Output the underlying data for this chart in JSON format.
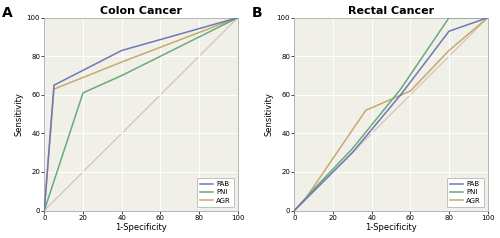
{
  "panel_A": {
    "title": "Colon Cancer",
    "label": "A",
    "PAB": {
      "x": [
        0,
        5,
        40,
        100
      ],
      "y": [
        0,
        65,
        83,
        100
      ]
    },
    "PNI": {
      "x": [
        0,
        20,
        40,
        100
      ],
      "y": [
        0,
        61,
        70,
        100
      ]
    },
    "AGR": {
      "x": [
        0,
        5,
        40,
        100
      ],
      "y": [
        0,
        63,
        77,
        100
      ]
    },
    "colors": {
      "PAB": "#6e78b5",
      "PNI": "#6aaa7a",
      "AGR": "#c8a870"
    },
    "diag_color": "#d4c4b8"
  },
  "panel_B": {
    "title": "Rectal Cancer",
    "label": "B",
    "PAB": {
      "x": [
        0,
        10,
        30,
        55,
        80,
        100
      ],
      "y": [
        0,
        10,
        30,
        60,
        93,
        100
      ]
    },
    "PNI": {
      "x": [
        0,
        10,
        30,
        55,
        80,
        100
      ],
      "y": [
        0,
        11,
        32,
        63,
        100,
        100
      ]
    },
    "AGR": {
      "x": [
        0,
        5,
        37,
        60,
        80,
        100
      ],
      "y": [
        0,
        5,
        52,
        62,
        83,
        100
      ]
    },
    "colors": {
      "PAB": "#6e78b5",
      "PNI": "#6aaa7a",
      "AGR": "#c8a870"
    },
    "diag_color": "#d4c4b8"
  },
  "xlabel": "1-Specificity",
  "ylabel": "Sensitivity",
  "xlim": [
    0,
    100
  ],
  "ylim": [
    0,
    100
  ],
  "xticks": [
    0,
    20,
    40,
    60,
    80,
    100
  ],
  "yticks": [
    0,
    20,
    40,
    60,
    80,
    100
  ],
  "bg_color": "#ffffff",
  "plot_bg_color": "#f0f0e8",
  "grid_color": "#ffffff"
}
